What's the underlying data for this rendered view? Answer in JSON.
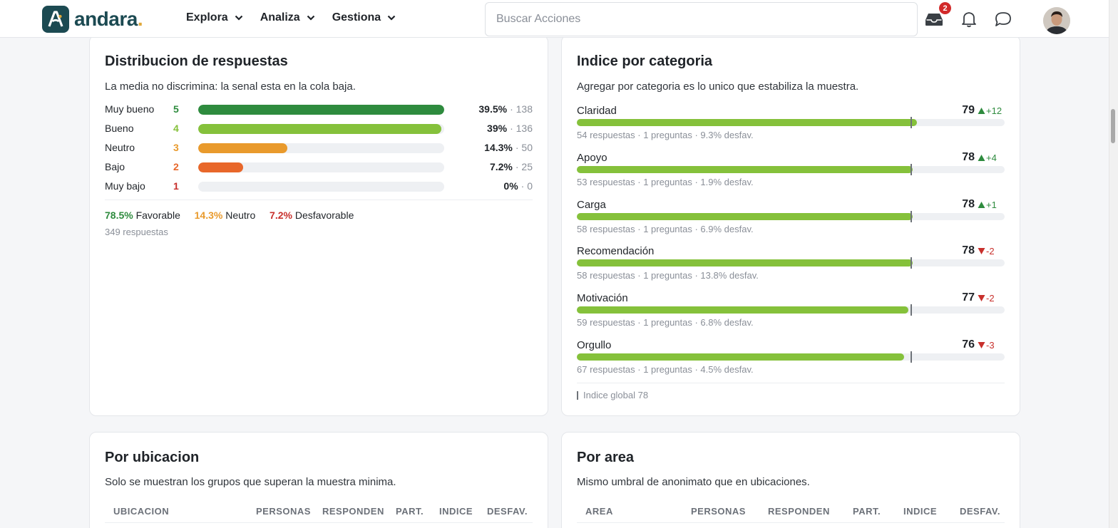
{
  "header": {
    "brand": "andara",
    "brand_dot": ".",
    "nav": [
      {
        "label": "Explora"
      },
      {
        "label": "Analiza"
      },
      {
        "label": "Gestiona"
      }
    ],
    "search_placeholder": "Buscar Acciones",
    "inbox_badge": "2"
  },
  "distribucion": {
    "title": "Distribucion de respuestas",
    "subtitle": "La media no discrimina: la senal esta en la cola baja.",
    "rows": [
      {
        "label": "Muy bueno",
        "score": "5",
        "fraction": 0.395,
        "pct": "39.5%",
        "count": "· 138",
        "color": "#2e8b3e"
      },
      {
        "label": "Bueno",
        "score": "4",
        "fraction": 0.39,
        "pct": "39%",
        "count": "· 136",
        "color": "#85c13b"
      },
      {
        "label": "Neutro",
        "score": "3",
        "fraction": 0.143,
        "pct": "14.3%",
        "count": "· 50",
        "color": "#e99a2c"
      },
      {
        "label": "Bajo",
        "score": "2",
        "fraction": 0.072,
        "pct": "7.2%",
        "count": "· 25",
        "color": "#e8672a"
      },
      {
        "label": "Muy bajo",
        "score": "1",
        "fraction": 0,
        "pct": "0%",
        "count": "· 0",
        "color": "#c8302c"
      }
    ],
    "summary": {
      "fav_pct": "78.5%",
      "fav_label": "Favorable",
      "neu_pct": "14.3%",
      "neu_label": "Neutro",
      "desf_pct": "7.2%",
      "desf_label": "Desfavorable"
    },
    "total": "349 respuestas"
  },
  "categorias": {
    "title": "Indice por categoria",
    "subtitle": "Agregar por categoria es lo unico que estabiliza la muestra.",
    "global_value": 78,
    "items": [
      {
        "name": "Claridad",
        "value": "79",
        "index": 79,
        "dir": "up",
        "delta": "+12",
        "meta": "54 respuestas · 1 preguntas · 9.3% desfav."
      },
      {
        "name": "Apoyo",
        "value": "78",
        "index": 78,
        "dir": "up",
        "delta": "+4",
        "meta": "53 respuestas · 1 preguntas · 1.9% desfav."
      },
      {
        "name": "Carga",
        "value": "78",
        "index": 78,
        "dir": "up",
        "delta": "+1",
        "meta": "58 respuestas · 1 preguntas · 6.9% desfav."
      },
      {
        "name": "Recomendación",
        "value": "78",
        "index": 78,
        "dir": "down",
        "delta": "-2",
        "meta": "58 respuestas · 1 preguntas · 13.8% desfav."
      },
      {
        "name": "Motivación",
        "value": "77",
        "index": 77,
        "dir": "down",
        "delta": "-2",
        "meta": "59 respuestas · 1 preguntas · 6.8% desfav."
      },
      {
        "name": "Orgullo",
        "value": "76",
        "index": 76,
        "dir": "down",
        "delta": "-3",
        "meta": "67 respuestas · 1 preguntas · 4.5% desfav."
      }
    ],
    "legend": "Indice global 78",
    "colors": {
      "up": "#2e8b3e",
      "down": "#c8302c",
      "bar": "#85c13b"
    }
  },
  "ubicacion": {
    "title": "Por ubicacion",
    "subtitle": "Solo se muestran los grupos que superan la muestra minima.",
    "columns": [
      "UBICACION",
      "PERSONAS",
      "RESPONDEN",
      "PART.",
      "INDICE",
      "DESFAV."
    ]
  },
  "area": {
    "title": "Por area",
    "subtitle": "Mismo umbral de anonimato que en ubicaciones.",
    "columns": [
      "AREA",
      "PERSONAS",
      "RESPONDEN",
      "PART.",
      "INDICE",
      "DESFAV."
    ]
  }
}
